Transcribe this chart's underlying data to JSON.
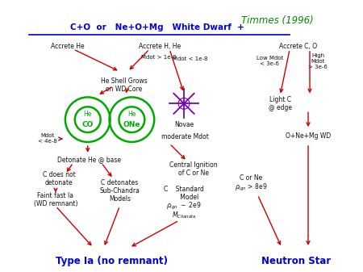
{
  "title": "Timmes (1996)",
  "title_color": "#008800",
  "bg_color": "#ffffff",
  "header_text": "C+O  or   Ne+O+Mg   White Dwarf  +",
  "header_color": "#0000dd",
  "bottom_left_text": "Type Ia (no remnant)",
  "bottom_left_color": "#0000dd",
  "bottom_right_text": "Neutron Star",
  "bottom_right_color": "#0000dd",
  "red": "#cc0000",
  "black": "#111111",
  "green": "#00aa00",
  "purple": "#7700bb"
}
